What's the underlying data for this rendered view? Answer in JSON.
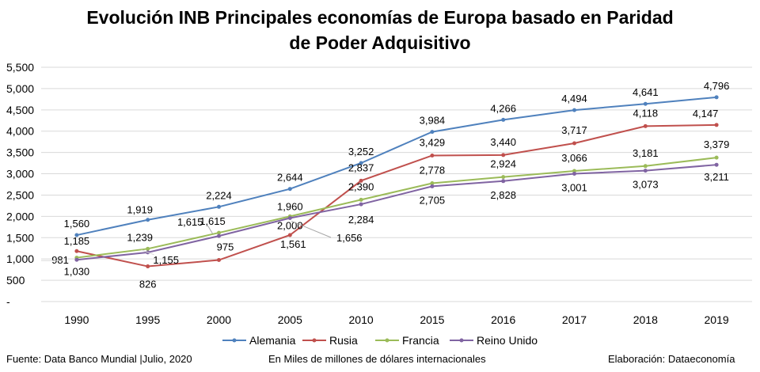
{
  "title_line1": "Evolución INB Principales economías de Europa basado en Paridad",
  "title_line2": "de Poder Adquisitivo",
  "footer": {
    "source": "Fuente: Data Banco Mundial |Julio, 2020",
    "units": "En Miles de millones de dólares internacionales",
    "credit": "Elaboración: Dataeconomía"
  },
  "chart_data": {
    "type": "line",
    "title": "Evolución INB Principales economías de Europa basado en Paridad de Poder Adquisitivo",
    "categories": [
      "1990",
      "1995",
      "2000",
      "2005",
      "2010",
      "2015",
      "2016",
      "2017",
      "2018",
      "2019"
    ],
    "ylim": [
      0,
      5500
    ],
    "yticks": [
      "-",
      "500",
      "1,000",
      "1,500",
      "2,000",
      "2,500",
      "3,000",
      "3,500",
      "4,000",
      "4,500",
      "5,000",
      "5,500"
    ],
    "grid": true,
    "legend_position": "bottom",
    "series": [
      {
        "name": "Alemania",
        "color": "#4f81bd",
        "values": [
          1560,
          1919,
          2224,
          2644,
          3252,
          3984,
          4266,
          4494,
          4641,
          4796
        ],
        "labels": [
          "1,560",
          "1,919",
          "2,224",
          "2,644",
          "3,252",
          "3,984",
          "4,266",
          "4,494",
          "4,641",
          "4,796"
        ]
      },
      {
        "name": "Rusia",
        "color": "#c0504d",
        "values": [
          1185,
          826,
          975,
          1561,
          2837,
          3429,
          3440,
          3717,
          4118,
          4147
        ],
        "labels": [
          "1,185",
          "826",
          "975",
          "1,561",
          "2,837",
          "3,429",
          "3,440",
          "3,717",
          "4,118",
          "4,147"
        ]
      },
      {
        "name": "Francia",
        "color": "#9bbb59",
        "values": [
          1030,
          1239,
          1615,
          2000,
          2390,
          2778,
          2924,
          3066,
          3181,
          3379
        ],
        "labels": [
          "1,030",
          "1,239",
          "1,615",
          "2,000",
          "2,390",
          "2,778",
          "2,924",
          "3,066",
          "3,181",
          "3,379"
        ]
      },
      {
        "name": "Reino Unido",
        "color": "#8064a2",
        "values": [
          981,
          1155,
          1540,
          1960,
          2284,
          2705,
          2828,
          3001,
          3073,
          3211
        ],
        "labels": [
          "981",
          "1,155",
          "",
          "1,960",
          "2,284",
          "2,705",
          "2,828",
          "3,001",
          "3,073",
          "3,211"
        ]
      }
    ],
    "extra_labels": [
      "1,656"
    ]
  }
}
